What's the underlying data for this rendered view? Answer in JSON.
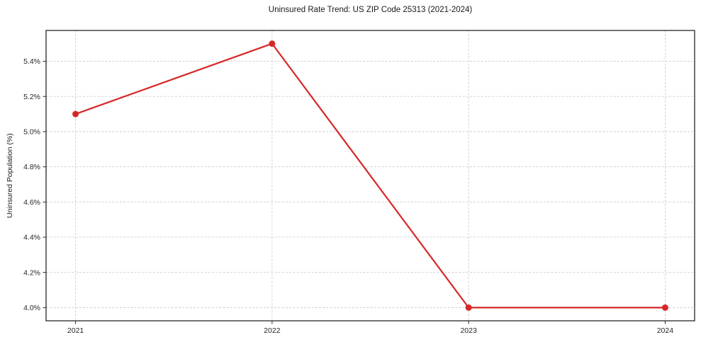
{
  "chart_data": {
    "type": "line",
    "title": "Uninsured Rate Trend: US ZIP Code 25313 (2021-2024)",
    "xlabel": "",
    "ylabel": "Uninsured Population (%)",
    "x": [
      2021,
      2022,
      2023,
      2024
    ],
    "series": [
      {
        "name": "Uninsured Rate",
        "values": [
          5.1,
          5.5,
          4.0,
          4.0
        ]
      }
    ],
    "xticks": [
      2021,
      2022,
      2023,
      2024
    ],
    "xtick_labels": [
      "2021",
      "2022",
      "2023",
      "2024"
    ],
    "yticks": [
      4.0,
      4.2,
      4.4,
      4.6,
      4.8,
      5.0,
      5.2,
      5.4
    ],
    "ytick_labels": [
      "4.0%",
      "4.2%",
      "4.4%",
      "4.6%",
      "4.8%",
      "5.0%",
      "5.2%",
      "5.4%"
    ],
    "xlim": [
      2020.85,
      2024.15
    ],
    "ylim": [
      3.925,
      5.575
    ],
    "grid": true,
    "grid_style": "dashed",
    "legend": false,
    "line_color": "#d62728",
    "marker": "circle",
    "grid_color": "#cccccc",
    "axis_color": "#262626",
    "tick_label_color": "#262626",
    "background": "#ffffff"
  }
}
